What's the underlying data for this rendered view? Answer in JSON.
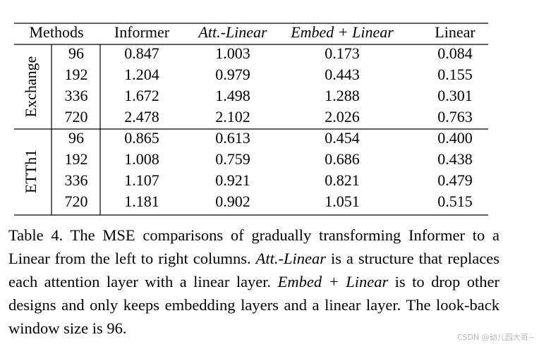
{
  "table": {
    "header": [
      "Methods",
      "Informer",
      "Att.-Linear",
      "Embed + Linear",
      "Linear"
    ],
    "header_italic": [
      false,
      false,
      true,
      true,
      false
    ],
    "groups": [
      {
        "name": "Exchange",
        "rows": [
          [
            "96",
            "0.847",
            "1.003",
            "0.173",
            "0.084"
          ],
          [
            "192",
            "1.204",
            "0.979",
            "0.443",
            "0.155"
          ],
          [
            "336",
            "1.672",
            "1.498",
            "1.288",
            "0.301"
          ],
          [
            "720",
            "2.478",
            "2.102",
            "2.026",
            "0.763"
          ]
        ]
      },
      {
        "name": "ETTh1",
        "rows": [
          [
            "96",
            "0.865",
            "0.613",
            "0.454",
            "0.400"
          ],
          [
            "192",
            "1.008",
            "0.759",
            "0.686",
            "0.438"
          ],
          [
            "336",
            "1.107",
            "0.921",
            "0.821",
            "0.479"
          ],
          [
            "720",
            "1.181",
            "0.902",
            "1.051",
            "0.515"
          ]
        ]
      }
    ]
  },
  "caption": [
    {
      "text": "Table 4.  The MSE comparisons of gradually transforming Informer to a Linear from the left to right columns. ",
      "italic": false
    },
    {
      "text": "Att.-Linear",
      "italic": true
    },
    {
      "text": " is a structure that replaces each attention layer with a linear layer. ",
      "italic": false
    },
    {
      "text": "Embed + Linear",
      "italic": true
    },
    {
      "text": " is to drop other designs and only keeps embedding layers and a linear layer. The look-back window size is 96.",
      "italic": false
    }
  ],
  "watermark": "CSDN @幼儿园大哥~"
}
